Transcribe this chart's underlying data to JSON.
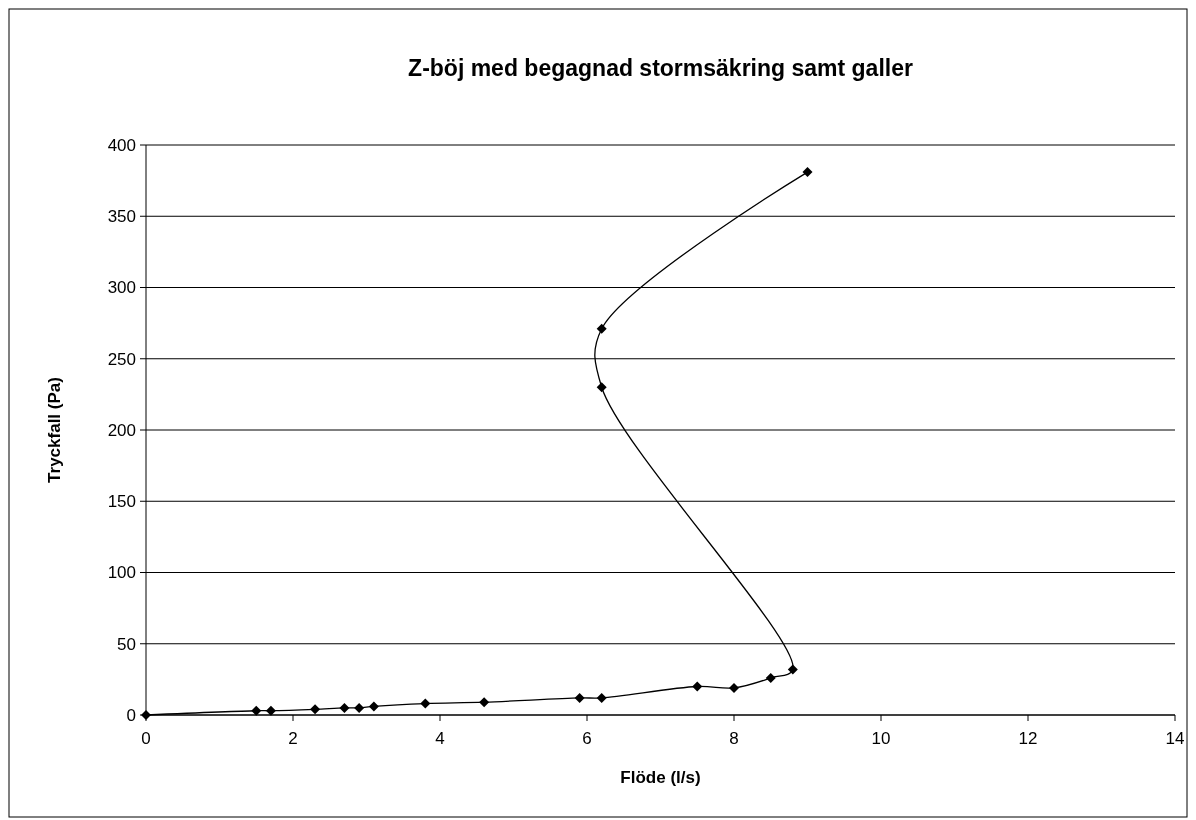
{
  "chart_data": {
    "type": "line",
    "title": "Z-böj med begagnad stormsäkring samt galler",
    "xlabel": "Flöde (l/s)",
    "ylabel": "Tryckfall (Pa)",
    "xlim": [
      0,
      14
    ],
    "xticks": [
      0,
      2,
      4,
      6,
      8,
      10,
      12,
      14
    ],
    "ylim": [
      0,
      400
    ],
    "yticks": [
      0,
      50,
      100,
      150,
      200,
      250,
      300,
      350,
      400
    ],
    "grid": "y",
    "marker": "diamond",
    "line_style": "solid",
    "series": [
      {
        "color": "#000000",
        "x": [
          0,
          1.5,
          1.7,
          2.3,
          2.7,
          2.9,
          3.1,
          3.8,
          4.6,
          5.9,
          6.2,
          7.5,
          8.0,
          8.5,
          8.8,
          6.2,
          6.2,
          9.0
        ],
        "values": [
          0,
          3,
          3,
          4,
          5,
          5,
          6,
          8,
          9,
          12,
          12,
          20,
          19,
          26,
          32,
          230,
          271,
          381
        ]
      }
    ]
  }
}
